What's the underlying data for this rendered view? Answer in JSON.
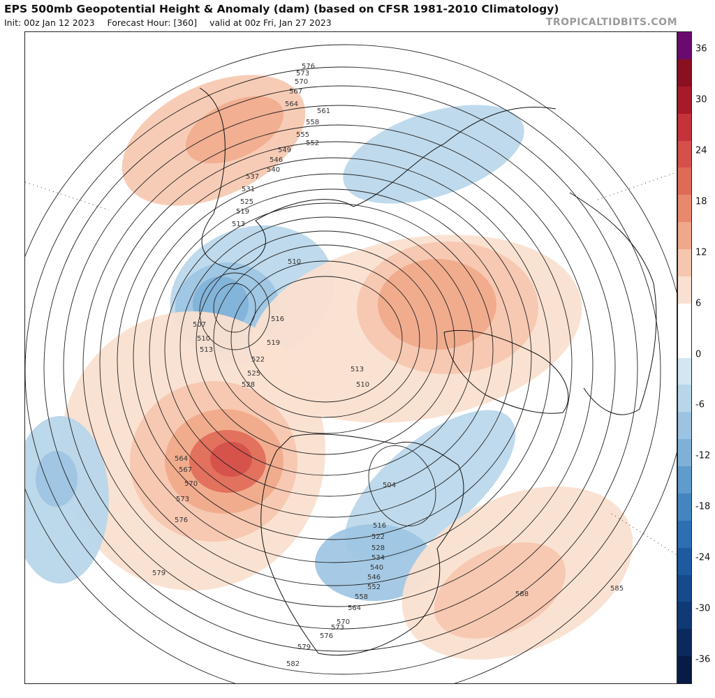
{
  "header": {
    "title": "EPS 500mb Geopotential Height & Anomaly (dam) (based on CFSR 1981-2010 Climatology)",
    "init": "Init: 00z Jan 12 2023",
    "forecast_hour": "Forecast Hour: [360]",
    "valid": "valid at 00z Fri, Jan 27 2023",
    "credit": "TROPICALTIDBITS.COM"
  },
  "colorbar": {
    "ticks": [
      "36",
      "30",
      "24",
      "18",
      "12",
      "6",
      "0",
      "-6",
      "-12",
      "-18",
      "-24",
      "-30",
      "-36"
    ],
    "colors": [
      "#6a0a6e",
      "#8a1020",
      "#a81a28",
      "#c4323a",
      "#d5504a",
      "#e06a58",
      "#e8896e",
      "#f0a88a",
      "#f6c6ae",
      "#fae0d0",
      "#ffffff",
      "#ffffff",
      "#d3e6f1",
      "#b8d6ea",
      "#9cc4e2",
      "#7fb1d8",
      "#5f9bcc",
      "#4485c0",
      "#2d6fb2",
      "#1e5aa0",
      "#164a8c",
      "#103a76",
      "#0a2a5e",
      "#061c46"
    ]
  },
  "contour_labels": [
    "576",
    "573",
    "570",
    "567",
    "564",
    "561",
    "558",
    "555",
    "552",
    "549",
    "546",
    "540",
    "537",
    "531",
    "525",
    "519",
    "513",
    "510",
    "507",
    "510",
    "513",
    "516",
    "519",
    "522",
    "525",
    "528",
    "513",
    "510",
    "504",
    "516",
    "522",
    "528",
    "534",
    "540",
    "546",
    "552",
    "558",
    "564",
    "570",
    "573",
    "576",
    "579",
    "582",
    "564",
    "567",
    "570",
    "573",
    "576",
    "579",
    "585",
    "588"
  ]
}
